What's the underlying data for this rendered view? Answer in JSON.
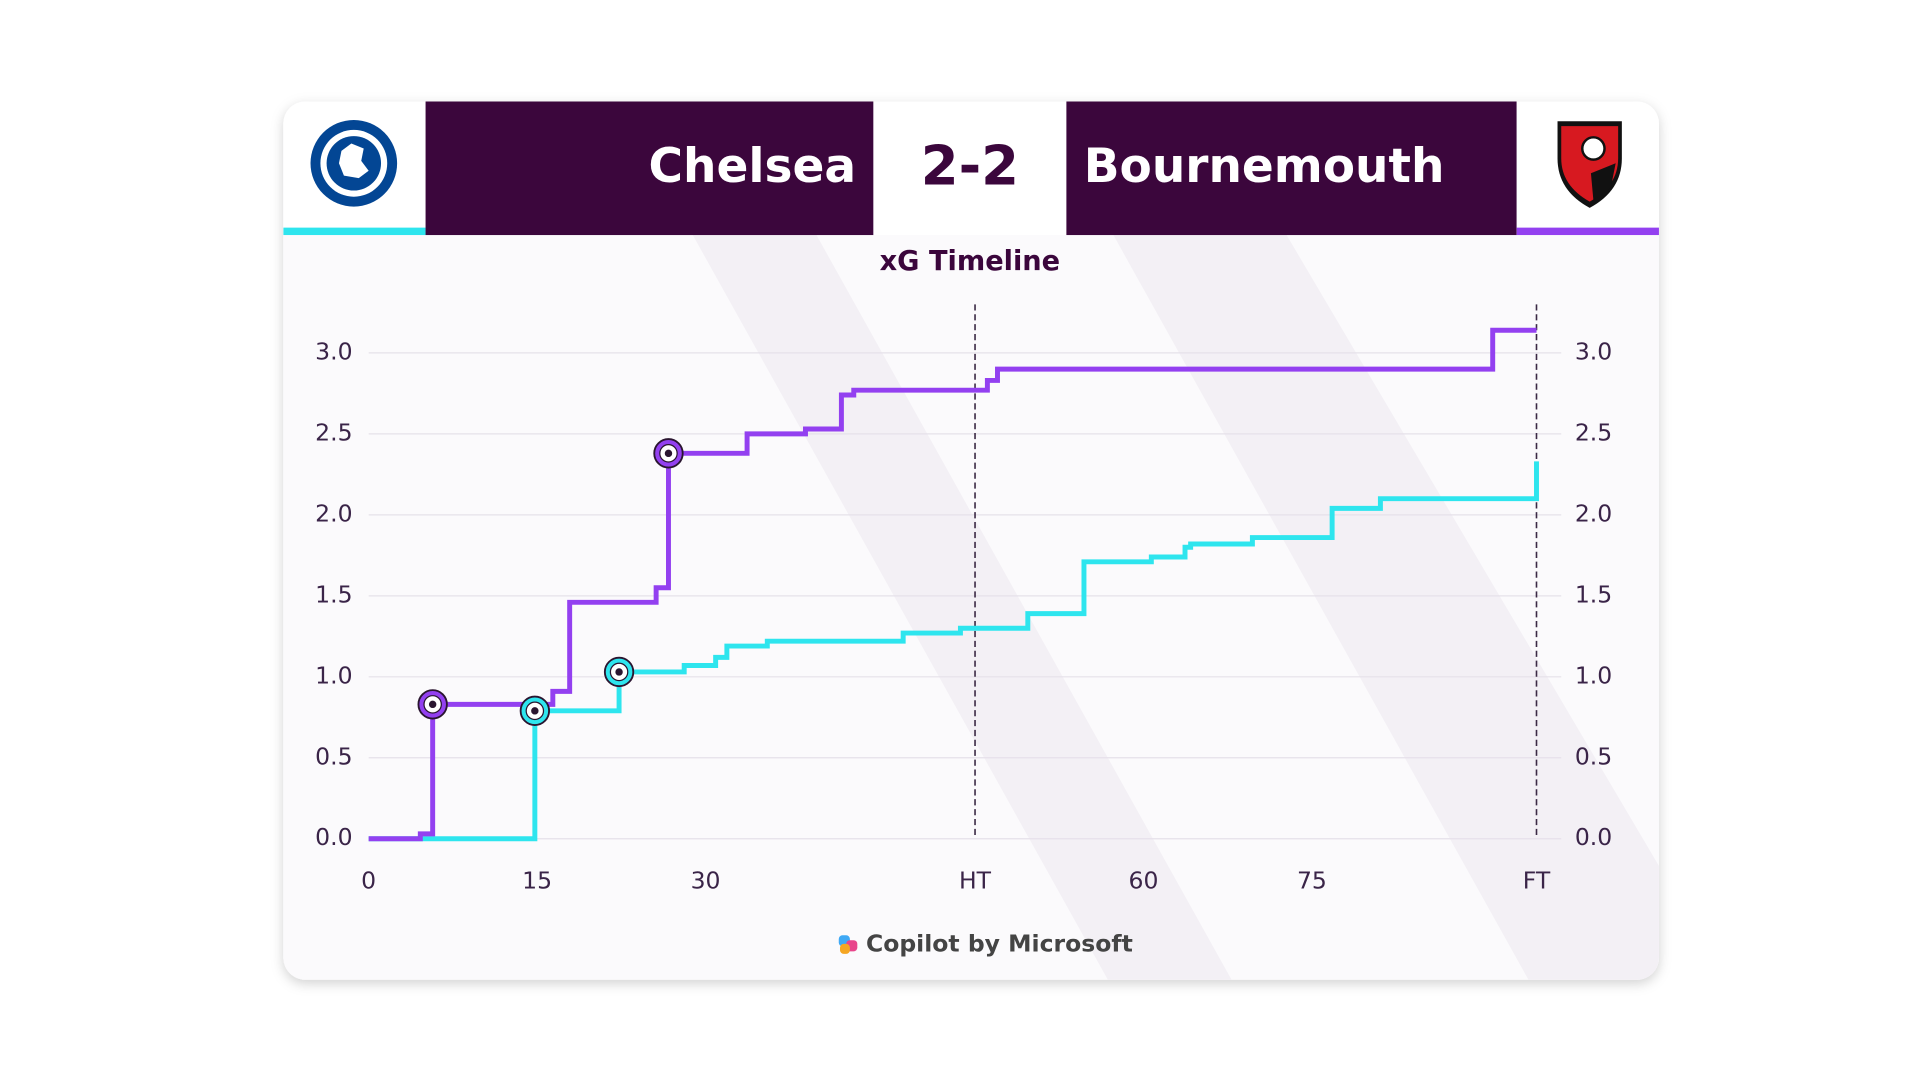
{
  "chart_data": {
    "type": "step-line",
    "title": "xG Timeline",
    "home_team": "Chelsea",
    "away_team": "Bournemouth",
    "score": "2-2",
    "footer": "Copilot by Microsoft",
    "xlim": [
      0,
      104
    ],
    "xticks": [
      0,
      15,
      30,
      {
        "value": 54,
        "label": "HT"
      },
      {
        "value": 69,
        "label": "60"
      },
      {
        "value": 84,
        "label": "75"
      },
      {
        "value": 104,
        "label": "FT"
      }
    ],
    "ylim": [
      0,
      3.3
    ],
    "yticks": [
      {
        "value": 0,
        "label": "0.0"
      },
      0.5,
      {
        "value": 1,
        "label": "1.0"
      },
      1.5,
      {
        "value": 2,
        "label": "2.0"
      },
      2.5,
      {
        "value": 3,
        "label": "3.0"
      }
    ],
    "y2lim": [
      0,
      3.3
    ],
    "y2ticks": [
      {
        "value": 0,
        "label": "0.0"
      },
      0.5,
      {
        "value": 1,
        "label": "1.0"
      },
      1.5,
      {
        "value": 2,
        "label": "2.0"
      },
      2.5,
      {
        "value": 3,
        "label": "3.0"
      }
    ],
    "grid": true,
    "series": [
      {
        "name": "Chelsea",
        "color": "#2ee5ee",
        "x": [
          0,
          14.8,
          22.3,
          28.1,
          30.9,
          31.9,
          35.5,
          47.6,
          52.7,
          58.7,
          63.7,
          69.7,
          72.7,
          73.2,
          78.7,
          85.8,
          90.1,
          104
        ],
        "values": [
          0,
          0.79,
          1.03,
          1.07,
          1.12,
          1.19,
          1.22,
          1.27,
          1.3,
          1.39,
          1.71,
          1.74,
          1.8,
          1.82,
          1.86,
          2.04,
          2.1,
          2.33
        ],
        "goal_markers": [
          1,
          2
        ]
      },
      {
        "name": "Bournemouth",
        "color": "#9340f0",
        "x": [
          0,
          4.6,
          5.7,
          16.4,
          17.9,
          25.6,
          26.7,
          33.7,
          38.9,
          42.1,
          43.2,
          55.1,
          56,
          100.1,
          104
        ],
        "values": [
          0,
          0.03,
          0.83,
          0.91,
          1.46,
          1.55,
          2.38,
          2.5,
          2.53,
          2.74,
          2.77,
          2.83,
          2.9,
          3.14,
          3.14
        ],
        "goal_markers": [
          2,
          6
        ]
      }
    ]
  }
}
